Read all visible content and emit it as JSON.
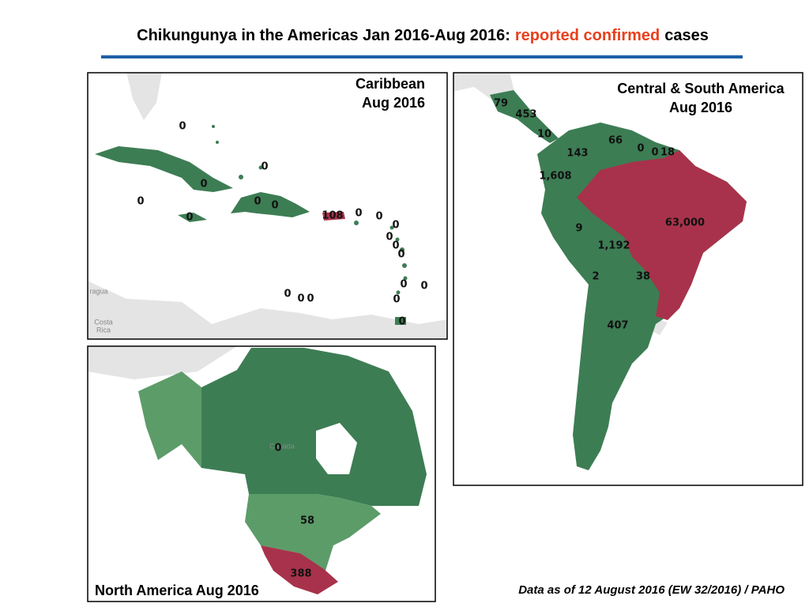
{
  "title": {
    "parts": [
      "Chikungunya in the Americas Jan 2016-Aug 2016:",
      "reported confirmed",
      "cases"
    ]
  },
  "panels": {
    "caribbean": {
      "title": [
        "Caribbean",
        "Aug 2016"
      ],
      "labels": [
        "0",
        "0",
        "0",
        "0",
        "0",
        "0",
        "0",
        "108",
        "0",
        "0",
        "0",
        "0",
        "0",
        "0",
        "0",
        "0",
        "0",
        "0",
        "0",
        "0",
        "0"
      ],
      "place_names": [
        "ragua",
        "Costa",
        "Rica"
      ]
    },
    "central_south_america": {
      "title": [
        "Central & South America",
        "Aug 2016"
      ],
      "labels": [
        "79",
        "453",
        "10",
        "66",
        "0",
        "0",
        "18",
        "143",
        "1,608",
        "9",
        "63,000",
        "1,192",
        "2",
        "38",
        "407"
      ]
    },
    "north_america": {
      "title": [
        "North America Aug 2016"
      ],
      "labels": [
        "0",
        "58",
        "388"
      ],
      "place_names": [
        "Canada"
      ]
    }
  },
  "footer": "Data as of 12 August 2016 (EW 32/2016) / PAHO"
}
